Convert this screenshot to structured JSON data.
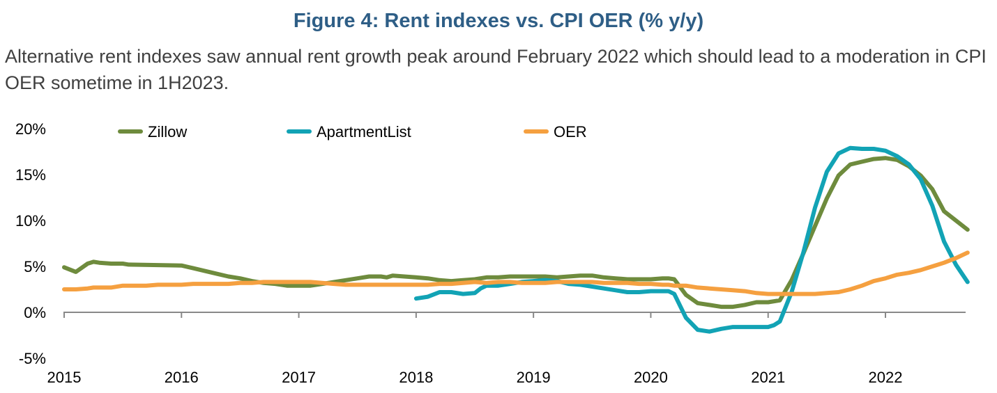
{
  "title": "Figure 4: Rent indexes vs. CPI OER (% y/y)",
  "subtitle": "Alternative rent indexes saw annual rent growth peak around February 2022 which should lead to a moderation in CPI OER sometime in 1H2023.",
  "chart_data": {
    "type": "line",
    "xlim": [
      2015,
      2022.7
    ],
    "ylim": [
      -5,
      20
    ],
    "y_ticks": [
      -5,
      0,
      5,
      10,
      15,
      20
    ],
    "y_tick_labels": [
      "-5%",
      "0%",
      "5%",
      "10%",
      "15%",
      "20%"
    ],
    "x_ticks": [
      2015,
      2016,
      2017,
      2018,
      2019,
      2020,
      2021,
      2022
    ],
    "x_tick_labels": [
      "2015",
      "2016",
      "2017",
      "2018",
      "2019",
      "2020",
      "2021",
      "2022"
    ],
    "grid": false,
    "legend_position": "top",
    "series": [
      {
        "name": "Zillow",
        "color": "#6e8b3d",
        "x": [
          2015.0,
          2015.1,
          2015.2,
          2015.25,
          2015.3,
          2015.4,
          2015.5,
          2015.55,
          2016.0,
          2016.1,
          2016.2,
          2016.3,
          2016.4,
          2016.5,
          2016.6,
          2016.7,
          2016.8,
          2016.9,
          2017.0,
          2017.1,
          2017.2,
          2017.3,
          2017.4,
          2017.5,
          2017.6,
          2017.7,
          2017.75,
          2017.8,
          2017.9,
          2018.0,
          2018.1,
          2018.2,
          2018.3,
          2018.4,
          2018.5,
          2018.6,
          2018.7,
          2018.8,
          2018.9,
          2019.0,
          2019.1,
          2019.2,
          2019.3,
          2019.4,
          2019.5,
          2019.6,
          2019.7,
          2019.8,
          2019.9,
          2020.0,
          2020.1,
          2020.15,
          2020.2,
          2020.3,
          2020.4,
          2020.5,
          2020.6,
          2020.7,
          2020.8,
          2020.9,
          2021.0,
          2021.1,
          2021.2,
          2021.3,
          2021.4,
          2021.5,
          2021.6,
          2021.7,
          2021.8,
          2021.9,
          2022.0,
          2022.1,
          2022.2,
          2022.3,
          2022.4,
          2022.5,
          2022.6,
          2022.7
        ],
        "values": [
          4.9,
          4.4,
          5.3,
          5.5,
          5.4,
          5.3,
          5.3,
          5.2,
          5.1,
          4.8,
          4.5,
          4.2,
          3.9,
          3.7,
          3.4,
          3.2,
          3.1,
          2.9,
          2.9,
          2.9,
          3.1,
          3.3,
          3.5,
          3.7,
          3.9,
          3.9,
          3.8,
          4.0,
          3.9,
          3.8,
          3.7,
          3.5,
          3.4,
          3.5,
          3.6,
          3.8,
          3.8,
          3.9,
          3.9,
          3.9,
          3.9,
          3.8,
          3.9,
          4.0,
          4.0,
          3.8,
          3.7,
          3.6,
          3.6,
          3.6,
          3.7,
          3.7,
          3.6,
          1.9,
          1.0,
          0.8,
          0.6,
          0.6,
          0.8,
          1.1,
          1.1,
          1.3,
          3.5,
          6.4,
          9.4,
          12.4,
          14.9,
          16.1,
          16.4,
          16.7,
          16.8,
          16.6,
          15.9,
          14.9,
          13.4,
          11.0,
          10.0,
          9.0
        ]
      },
      {
        "name": "ApartmentList",
        "color": "#12a3b5",
        "x": [
          2018.0,
          2018.1,
          2018.2,
          2018.3,
          2018.4,
          2018.5,
          2018.55,
          2018.6,
          2018.7,
          2018.8,
          2018.9,
          2019.0,
          2019.1,
          2019.2,
          2019.3,
          2019.4,
          2019.5,
          2019.6,
          2019.7,
          2019.8,
          2019.9,
          2020.0,
          2020.1,
          2020.15,
          2020.2,
          2020.3,
          2020.4,
          2020.5,
          2020.6,
          2020.7,
          2020.8,
          2020.9,
          2021.0,
          2021.05,
          2021.1,
          2021.2,
          2021.3,
          2021.4,
          2021.5,
          2021.6,
          2021.7,
          2021.8,
          2021.9,
          2022.0,
          2022.1,
          2022.2,
          2022.3,
          2022.4,
          2022.5,
          2022.6,
          2022.7
        ],
        "values": [
          1.5,
          1.7,
          2.2,
          2.2,
          2.0,
          2.1,
          2.6,
          2.9,
          2.9,
          3.1,
          3.3,
          3.4,
          3.5,
          3.4,
          3.1,
          3.0,
          2.8,
          2.6,
          2.4,
          2.2,
          2.2,
          2.3,
          2.3,
          2.3,
          2.0,
          -0.6,
          -1.9,
          -2.1,
          -1.8,
          -1.6,
          -1.6,
          -1.6,
          -1.6,
          -1.4,
          -1.0,
          2.2,
          6.5,
          11.4,
          15.3,
          17.3,
          17.9,
          17.8,
          17.8,
          17.6,
          17.0,
          16.1,
          14.5,
          11.6,
          7.7,
          5.2,
          3.3
        ]
      },
      {
        "name": "OER",
        "color": "#f5a040",
        "x": [
          2015.0,
          2015.1,
          2015.2,
          2015.25,
          2015.3,
          2015.4,
          2015.5,
          2015.6,
          2015.7,
          2015.8,
          2015.9,
          2016.0,
          2016.1,
          2016.2,
          2016.3,
          2016.4,
          2016.5,
          2016.6,
          2016.7,
          2016.8,
          2016.9,
          2017.0,
          2017.1,
          2017.2,
          2017.3,
          2017.4,
          2017.5,
          2017.6,
          2017.7,
          2017.8,
          2017.9,
          2018.0,
          2018.1,
          2018.2,
          2018.3,
          2018.4,
          2018.5,
          2018.6,
          2018.7,
          2018.8,
          2018.9,
          2019.0,
          2019.1,
          2019.2,
          2019.3,
          2019.4,
          2019.5,
          2019.6,
          2019.7,
          2019.8,
          2019.9,
          2020.0,
          2020.1,
          2020.15,
          2020.2,
          2020.3,
          2020.4,
          2020.5,
          2020.6,
          2020.7,
          2020.8,
          2020.9,
          2021.0,
          2021.1,
          2021.2,
          2021.3,
          2021.4,
          2021.5,
          2021.6,
          2021.7,
          2021.8,
          2021.9,
          2022.0,
          2022.1,
          2022.2,
          2022.3,
          2022.4,
          2022.5,
          2022.6,
          2022.7
        ],
        "values": [
          2.5,
          2.5,
          2.6,
          2.7,
          2.7,
          2.7,
          2.9,
          2.9,
          2.9,
          3.0,
          3.0,
          3.0,
          3.1,
          3.1,
          3.1,
          3.1,
          3.2,
          3.2,
          3.3,
          3.3,
          3.3,
          3.3,
          3.3,
          3.2,
          3.1,
          3.0,
          3.0,
          3.0,
          3.0,
          3.0,
          3.0,
          3.0,
          3.0,
          3.1,
          3.1,
          3.2,
          3.3,
          3.2,
          3.3,
          3.3,
          3.2,
          3.2,
          3.2,
          3.3,
          3.3,
          3.3,
          3.3,
          3.2,
          3.2,
          3.2,
          3.1,
          3.1,
          3.0,
          3.0,
          2.9,
          2.9,
          2.7,
          2.6,
          2.5,
          2.4,
          2.3,
          2.1,
          2.0,
          2.0,
          2.0,
          2.0,
          2.0,
          2.1,
          2.2,
          2.5,
          2.9,
          3.4,
          3.7,
          4.1,
          4.3,
          4.6,
          5.0,
          5.4,
          5.9,
          6.5
        ]
      }
    ]
  }
}
